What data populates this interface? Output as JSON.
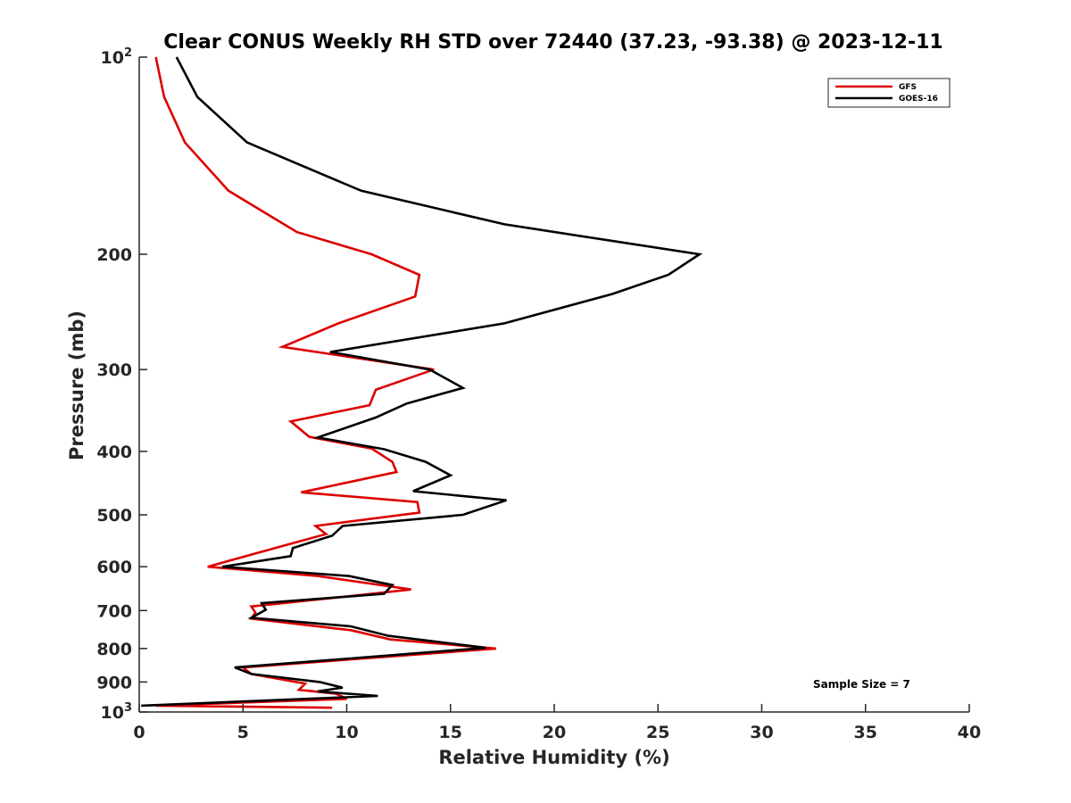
{
  "chart_data": {
    "type": "line",
    "title": "Clear CONUS Weekly RH STD over 72440 (37.23, -93.38) @ 2023-12-11",
    "xlabel": "Relative Humidity (%)",
    "ylabel": "Pressure (mb)",
    "xlim": [
      0,
      40
    ],
    "ylim": [
      100,
      1000
    ],
    "y_scale": "log",
    "y_reversed": true,
    "grid": false,
    "legend_position": "top-right",
    "x_ticks": [
      {
        "value": 0,
        "label": "0"
      },
      {
        "value": 5,
        "label": "5"
      },
      {
        "value": 10,
        "label": "10"
      },
      {
        "value": 15,
        "label": "15"
      },
      {
        "value": 20,
        "label": "20"
      },
      {
        "value": 25,
        "label": "25"
      },
      {
        "value": 30,
        "label": "30"
      },
      {
        "value": 35,
        "label": "35"
      },
      {
        "value": 40,
        "label": "40"
      }
    ],
    "y_ticks": [
      {
        "value": 100,
        "base": "10",
        "exp": "2"
      },
      {
        "value": 200,
        "base": "200",
        "exp": ""
      },
      {
        "value": 300,
        "base": "300",
        "exp": ""
      },
      {
        "value": 400,
        "base": "400",
        "exp": ""
      },
      {
        "value": 500,
        "base": "500",
        "exp": ""
      },
      {
        "value": 600,
        "base": "600",
        "exp": ""
      },
      {
        "value": 700,
        "base": "700",
        "exp": ""
      },
      {
        "value": 800,
        "base": "800",
        "exp": ""
      },
      {
        "value": 900,
        "base": "900",
        "exp": ""
      },
      {
        "value": 1000,
        "base": "10",
        "exp": "3"
      }
    ],
    "annotation": "Sample Size = 7",
    "series": [
      {
        "name": "GFS",
        "color": "#dd0000",
        "points": [
          [
            0.8,
            100
          ],
          [
            1.2,
            115
          ],
          [
            2.2,
            135
          ],
          [
            4.3,
            160
          ],
          [
            7.6,
            185
          ],
          [
            11.2,
            200
          ],
          [
            13.5,
            215
          ],
          [
            13.3,
            232
          ],
          [
            9.6,
            255
          ],
          [
            6.9,
            277
          ],
          [
            14.2,
            300
          ],
          [
            11.4,
            322
          ],
          [
            11.1,
            340
          ],
          [
            7.3,
            360
          ],
          [
            8.2,
            380
          ],
          [
            11.2,
            396
          ],
          [
            12.2,
            415
          ],
          [
            12.4,
            430
          ],
          [
            7.8,
            462
          ],
          [
            13.4,
            478
          ],
          [
            13.5,
            496
          ],
          [
            8.5,
            520
          ],
          [
            9.0,
            535
          ],
          [
            6.7,
            560
          ],
          [
            3.3,
            600
          ],
          [
            8.6,
            620
          ],
          [
            13.1,
            650
          ],
          [
            10.2,
            665
          ],
          [
            5.4,
            690
          ],
          [
            5.6,
            705
          ],
          [
            5.4,
            720
          ],
          [
            10.2,
            750
          ],
          [
            12.1,
            775
          ],
          [
            17.2,
            800
          ],
          [
            5.0,
            855
          ],
          [
            5.4,
            875
          ],
          [
            8.0,
            905
          ],
          [
            7.7,
            925
          ],
          [
            9.5,
            938
          ],
          [
            10.0,
            955
          ],
          [
            0.8,
            978
          ],
          [
            9.3,
            985
          ]
        ]
      },
      {
        "name": "GOES-16",
        "color": "#000000",
        "points": [
          [
            1.8,
            100
          ],
          [
            2.8,
            115
          ],
          [
            5.2,
            135
          ],
          [
            10.7,
            160
          ],
          [
            17.6,
            180
          ],
          [
            27.0,
            200
          ],
          [
            25.5,
            215
          ],
          [
            22.8,
            230
          ],
          [
            17.6,
            255
          ],
          [
            9.2,
            282
          ],
          [
            14.0,
            300
          ],
          [
            15.6,
            320
          ],
          [
            12.9,
            338
          ],
          [
            11.4,
            355
          ],
          [
            8.6,
            381
          ],
          [
            11.8,
            397
          ],
          [
            13.8,
            415
          ],
          [
            15.0,
            435
          ],
          [
            13.2,
            460
          ],
          [
            17.7,
            475
          ],
          [
            15.6,
            500
          ],
          [
            9.8,
            520
          ],
          [
            9.3,
            538
          ],
          [
            7.4,
            562
          ],
          [
            7.3,
            578
          ],
          [
            4.0,
            600
          ],
          [
            10.1,
            620
          ],
          [
            12.2,
            640
          ],
          [
            11.8,
            660
          ],
          [
            5.9,
            682
          ],
          [
            6.1,
            698
          ],
          [
            5.4,
            718
          ],
          [
            10.2,
            740
          ],
          [
            12.0,
            765
          ],
          [
            16.7,
            798
          ],
          [
            4.6,
            855
          ],
          [
            5.4,
            875
          ],
          [
            8.7,
            900
          ],
          [
            9.8,
            918
          ],
          [
            8.6,
            930
          ],
          [
            11.5,
            945
          ],
          [
            0.1,
            978
          ]
        ]
      }
    ]
  }
}
